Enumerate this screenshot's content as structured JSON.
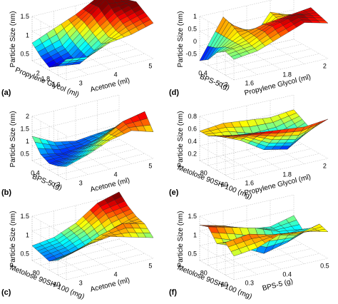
{
  "panels": [
    {
      "letter": "(a)",
      "zlabel": "Particle Size (nm)",
      "xlabel": "Propylene Glycol (ml)",
      "ylabel": "Acetone (ml)",
      "xticks": [
        "2",
        "1.8",
        "1.6"
      ],
      "yticks": [
        "3",
        "4",
        "5"
      ],
      "zticks": [
        "0.5",
        "1",
        "1.5"
      ]
    },
    {
      "letter": "(b)",
      "zlabel": "Particle Size (nm)",
      "xlabel": "BPS-5 (g)",
      "ylabel": "Acetone (ml)",
      "xticks": [
        "0.4",
        "0.3"
      ],
      "yticks": [
        "3",
        "4",
        "5"
      ],
      "zticks": [
        "0.5",
        "1",
        "1.5",
        "2"
      ]
    },
    {
      "letter": "(c)",
      "zlabel": "Particle Size (nm)",
      "xlabel": "Metolose 90SH-100 (mg)",
      "ylabel": "Acetone (ml)",
      "xticks": [
        "80",
        "60"
      ],
      "yticks": [
        "3",
        "4",
        "5"
      ],
      "zticks": [
        "0.5",
        "1",
        "1.5"
      ]
    },
    {
      "letter": "(d)",
      "zlabel": "Particle Size (nm)",
      "xlabel": "BPS-5 (g)",
      "ylabel": "Propylene Glycol (ml)",
      "xticks": [
        "0.4",
        "0.3"
      ],
      "yticks": [
        "1.6",
        "1.8",
        "2"
      ],
      "zticks": [
        "-0.5",
        "0",
        "0.5",
        "1"
      ]
    },
    {
      "letter": "(e)",
      "zlabel": "Particle Size (nm)",
      "xlabel": "Metolose 90SH-100 (mg)",
      "ylabel": "Propylene Glycol (ml)",
      "xticks": [
        "80",
        "60"
      ],
      "yticks": [
        "1.6",
        "1.8",
        "2"
      ],
      "zticks": [
        "0.2",
        "0.4",
        "0.6",
        "0.8"
      ]
    },
    {
      "letter": "(f)",
      "zlabel": "Particle Size (nm)",
      "xlabel": "Metolose 90SH-100 (mg)",
      "ylabel": "BPS-5 (g)",
      "xticks": [
        "80",
        "60"
      ],
      "yticks": [
        "0.3",
        "0.4",
        "0.5"
      ],
      "zticks": [
        "0.5",
        "1",
        "1.5"
      ]
    }
  ],
  "chart_data": [
    {
      "type": "surface",
      "panel": "(a)",
      "x": [
        1.6,
        1.7,
        1.8,
        1.9,
        2.0
      ],
      "y": [
        3,
        3.5,
        4,
        4.5,
        5
      ],
      "z": [
        [
          0.6,
          0.9,
          1.2,
          1.6,
          1.3
        ],
        [
          0.3,
          0.5,
          1.1,
          1.7,
          1.5
        ],
        [
          0.1,
          0.3,
          0.9,
          1.4,
          1.6
        ],
        [
          0.3,
          0.2,
          0.7,
          1.2,
          1.4
        ],
        [
          0.7,
          0.6,
          0.9,
          1.0,
          1.2
        ]
      ],
      "zlim": [
        0,
        1.5
      ]
    },
    {
      "type": "surface",
      "panel": "(b)",
      "x": [
        0.3,
        0.35,
        0.4,
        0.45,
        0.5
      ],
      "y": [
        3,
        3.5,
        4,
        4.5,
        5
      ],
      "z": [
        [
          1.1,
          0.6,
          0.4,
          0.5,
          0.6
        ],
        [
          0.5,
          0.3,
          0.4,
          0.7,
          1.0
        ],
        [
          0.3,
          0.4,
          0.7,
          1.2,
          1.5
        ],
        [
          0.4,
          0.6,
          1.1,
          1.7,
          1.9
        ],
        [
          0.6,
          0.9,
          1.3,
          1.5,
          1.2
        ]
      ],
      "zlim": [
        0,
        2
      ]
    },
    {
      "type": "surface",
      "panel": "(c)",
      "x": [
        50,
        60,
        70,
        80,
        90
      ],
      "y": [
        3,
        3.5,
        4,
        4.5,
        5
      ],
      "z": [
        [
          0.5,
          0.6,
          0.9,
          1.4,
          1.6
        ],
        [
          0.4,
          0.5,
          0.8,
          1.2,
          1.3
        ],
        [
          0.3,
          0.4,
          0.6,
          0.9,
          1.1
        ],
        [
          0.5,
          0.7,
          1.0,
          1.2,
          1.0
        ],
        [
          0.8,
          1.0,
          1.1,
          0.9,
          0.7
        ]
      ],
      "zlim": [
        0,
        1.5
      ]
    },
    {
      "type": "surface",
      "panel": "(d)",
      "x": [
        0.3,
        0.35,
        0.4,
        0.45,
        0.5
      ],
      "y": [
        1.6,
        1.7,
        1.8,
        1.9,
        2.0
      ],
      "z": [
        [
          -0.5,
          0.8,
          -0.4,
          0.6,
          0.3
        ],
        [
          -0.3,
          0.7,
          0.2,
          0.5,
          0.6
        ],
        [
          0.1,
          0.5,
          0.7,
          0.8,
          0.9
        ],
        [
          0.3,
          0.4,
          0.8,
          1.0,
          0.8
        ],
        [
          0.2,
          0.3,
          0.6,
          0.9,
          0.7
        ]
      ],
      "zlim": [
        -0.5,
        1
      ]
    },
    {
      "type": "surface",
      "panel": "(e)",
      "x": [
        50,
        60,
        70,
        80,
        90
      ],
      "y": [
        1.6,
        1.7,
        1.8,
        1.9,
        2.0
      ],
      "z": [
        [
          0.6,
          0.65,
          0.6,
          0.55,
          0.6
        ],
        [
          0.6,
          0.5,
          0.3,
          0.35,
          0.5
        ],
        [
          0.7,
          0.5,
          0.2,
          0.1,
          0.4
        ],
        [
          0.8,
          0.7,
          0.5,
          0.4,
          0.6
        ],
        [
          0.9,
          0.85,
          0.8,
          0.75,
          0.8
        ]
      ],
      "zlim": [
        0,
        0.9
      ]
    },
    {
      "type": "surface",
      "panel": "(f)",
      "x": [
        50,
        60,
        70,
        80,
        90
      ],
      "y": [
        0.3,
        0.35,
        0.4,
        0.45,
        0.5
      ],
      "z": [
        [
          1.2,
          1.0,
          0.7,
          0.6,
          0.8
        ],
        [
          1.3,
          1.1,
          0.9,
          0.6,
          0.5
        ],
        [
          0.9,
          0.6,
          0.2,
          0.4,
          0.7
        ],
        [
          1.1,
          1.2,
          1.0,
          0.8,
          1.0
        ],
        [
          0.8,
          0.9,
          1.2,
          1.1,
          0.9
        ]
      ],
      "zlim": [
        0,
        1.5
      ]
    }
  ]
}
